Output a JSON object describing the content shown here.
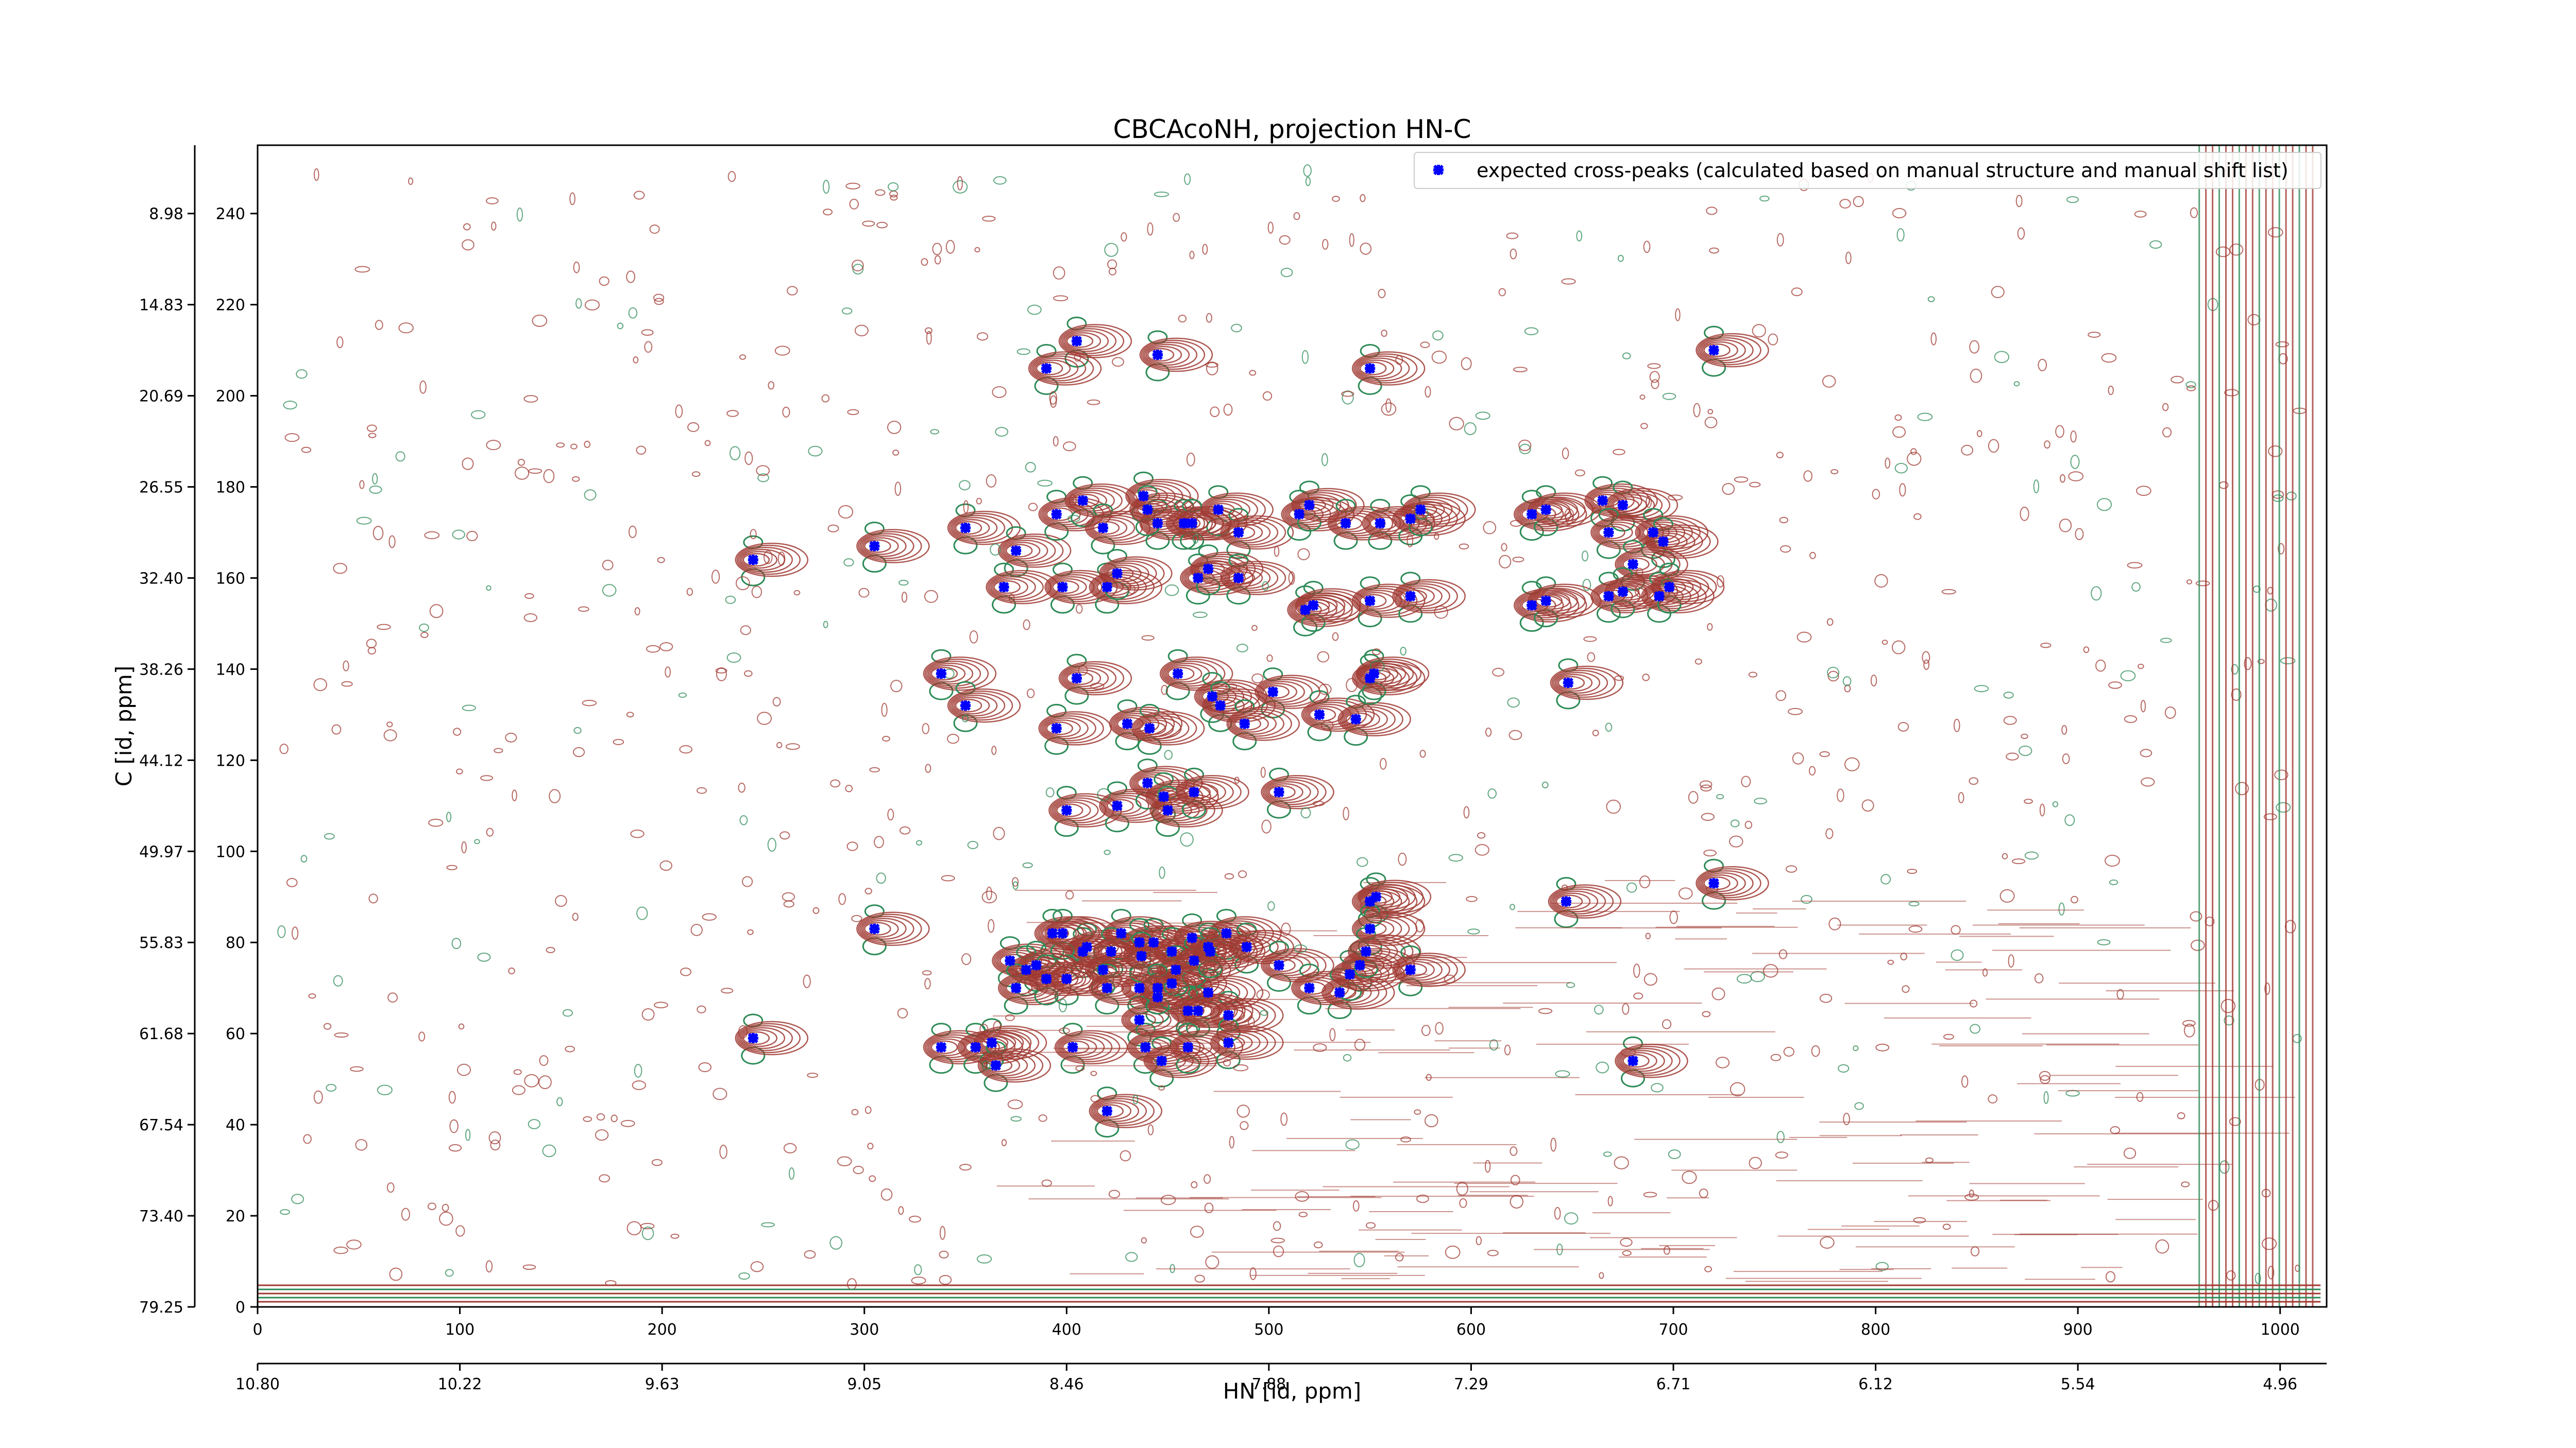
{
  "chart_data": {
    "type": "scatter",
    "title": "CBCAcoNH, projection HN-C",
    "xlabel": "HN [id, ppm]",
    "ylabel": "C [id, ppm]",
    "xlim": [
      0,
      1023
    ],
    "ylim": [
      0,
      255
    ],
    "x_ticks": [
      0,
      100,
      200,
      300,
      400,
      500,
      600,
      700,
      800,
      900,
      1000
    ],
    "y_ticks": [
      0,
      20,
      40,
      60,
      80,
      100,
      120,
      140,
      160,
      180,
      200,
      220,
      240
    ],
    "x_ppm_tick_labels": [
      "10.80",
      "10.22",
      "9.63",
      "9.05",
      "8.46",
      "7.88",
      "7.29",
      "6.71",
      "6.12",
      "5.54",
      "4.96"
    ],
    "y_ppm_tick_labels": [
      "79.25",
      "73.40",
      "67.54",
      "61.68",
      "55.83",
      "49.97",
      "44.12",
      "38.26",
      "32.40",
      "26.55",
      "20.69",
      "14.83",
      "8.98"
    ],
    "legend": {
      "location": "top-right",
      "entries": [
        "expected cross-peaks (calculated based on manual structure and manual shift list)"
      ]
    },
    "grid": false,
    "colors": {
      "peak_marker": "#0000ff",
      "positive_contour": "#a03a32",
      "negative_contour": "#2e8b57"
    },
    "series": [
      {
        "name": "expected cross-peaks (calculated based on manual structure and manual shift list)",
        "points": [
          [
            405,
            212
          ],
          [
            390,
            206
          ],
          [
            445,
            209
          ],
          [
            550,
            206
          ],
          [
            720,
            210
          ],
          [
            245,
            164
          ],
          [
            305,
            167
          ],
          [
            350,
            171
          ],
          [
            375,
            166
          ],
          [
            395,
            174
          ],
          [
            408,
            177
          ],
          [
            418,
            171
          ],
          [
            438,
            178
          ],
          [
            445,
            172
          ],
          [
            458,
            172
          ],
          [
            475,
            175
          ],
          [
            485,
            170
          ],
          [
            440,
            175
          ],
          [
            462,
            172
          ],
          [
            515,
            174
          ],
          [
            520,
            176
          ],
          [
            538,
            172
          ],
          [
            555,
            172
          ],
          [
            570,
            173
          ],
          [
            575,
            175
          ],
          [
            630,
            174
          ],
          [
            637,
            175
          ],
          [
            665,
            177
          ],
          [
            675,
            176
          ],
          [
            668,
            170
          ],
          [
            690,
            170
          ],
          [
            695,
            168
          ],
          [
            680,
            163
          ],
          [
            369,
            158
          ],
          [
            398,
            158
          ],
          [
            420,
            158
          ],
          [
            425,
            161
          ],
          [
            465,
            160
          ],
          [
            470,
            162
          ],
          [
            485,
            160
          ],
          [
            518,
            153
          ],
          [
            522,
            154
          ],
          [
            550,
            155
          ],
          [
            570,
            156
          ],
          [
            630,
            154
          ],
          [
            637,
            155
          ],
          [
            668,
            156
          ],
          [
            675,
            157
          ],
          [
            693,
            156
          ],
          [
            698,
            158
          ],
          [
            338,
            139
          ],
          [
            350,
            132
          ],
          [
            405,
            138
          ],
          [
            455,
            139
          ],
          [
            472,
            134
          ],
          [
            476,
            132
          ],
          [
            502,
            135
          ],
          [
            525,
            130
          ],
          [
            543,
            129
          ],
          [
            550,
            138
          ],
          [
            552,
            139
          ],
          [
            648,
            137
          ],
          [
            395,
            127
          ],
          [
            430,
            128
          ],
          [
            441,
            127
          ],
          [
            488,
            128
          ],
          [
            400,
            109
          ],
          [
            425,
            110
          ],
          [
            440,
            115
          ],
          [
            448,
            112
          ],
          [
            450,
            109
          ],
          [
            463,
            113
          ],
          [
            505,
            113
          ],
          [
            305,
            83
          ],
          [
            550,
            89
          ],
          [
            553,
            90
          ],
          [
            550,
            83
          ],
          [
            647,
            89
          ],
          [
            720,
            93
          ],
          [
            372,
            76
          ],
          [
            393,
            82
          ],
          [
            408,
            78
          ],
          [
            410,
            79
          ],
          [
            427,
            82
          ],
          [
            436,
            80
          ],
          [
            443,
            80
          ],
          [
            452,
            78
          ],
          [
            462,
            81
          ],
          [
            470,
            79
          ],
          [
            479,
            82
          ],
          [
            489,
            79
          ],
          [
            400,
            72
          ],
          [
            418,
            74
          ],
          [
            436,
            70
          ],
          [
            445,
            68
          ],
          [
            452,
            71
          ],
          [
            470,
            69
          ],
          [
            385,
            75
          ],
          [
            398,
            82
          ],
          [
            422,
            78
          ],
          [
            437,
            77
          ],
          [
            454,
            74
          ],
          [
            463,
            76
          ],
          [
            471,
            78
          ],
          [
            505,
            75
          ],
          [
            545,
            75
          ],
          [
            380,
            74
          ],
          [
            520,
            70
          ],
          [
            535,
            69
          ],
          [
            540,
            73
          ],
          [
            548,
            78
          ],
          [
            570,
            74
          ],
          [
            480,
            64
          ],
          [
            460,
            65
          ],
          [
            436,
            63
          ],
          [
            465,
            65
          ],
          [
            375,
            70
          ],
          [
            390,
            72
          ],
          [
            420,
            70
          ],
          [
            445,
            70
          ],
          [
            245,
            59
          ],
          [
            338,
            57
          ],
          [
            355,
            57
          ],
          [
            363,
            58
          ],
          [
            365,
            53
          ],
          [
            403,
            57
          ],
          [
            439,
            57
          ],
          [
            447,
            54
          ],
          [
            460,
            57
          ],
          [
            480,
            58
          ],
          [
            420,
            43
          ],
          [
            680,
            54
          ]
        ]
      }
    ]
  }
}
